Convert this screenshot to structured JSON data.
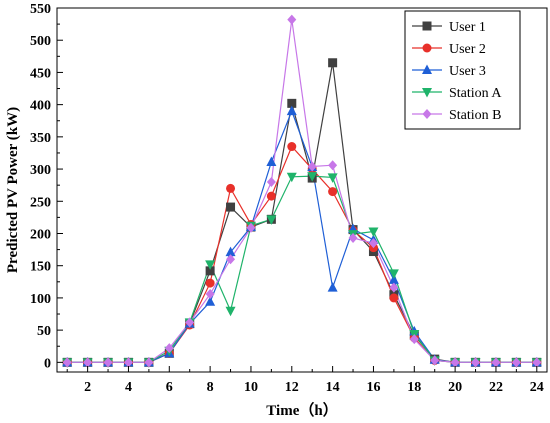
{
  "chart_data": {
    "type": "line",
    "xlabel": "Time（h）",
    "ylabel": "Predicted PV Power (kW)",
    "xlim": [
      0.5,
      24.5
    ],
    "ylim": [
      -15,
      550
    ],
    "xticks": [
      2,
      4,
      6,
      8,
      10,
      12,
      14,
      16,
      18,
      20,
      22,
      24
    ],
    "yticks": [
      0,
      50,
      100,
      150,
      200,
      250,
      300,
      350,
      400,
      450,
      500,
      550
    ],
    "grid": false,
    "legend_position": "top-right",
    "x": [
      1,
      2,
      3,
      4,
      5,
      6,
      7,
      8,
      9,
      10,
      11,
      12,
      13,
      14,
      15,
      16,
      17,
      18,
      19,
      20,
      21,
      22,
      23,
      24
    ],
    "series": [
      {
        "name": "User 1",
        "color": "#404040",
        "marker": "square",
        "values": [
          0,
          0,
          0,
          0,
          0,
          14,
          60,
          142,
          241,
          210,
          222,
          402,
          286,
          465,
          206,
          172,
          105,
          42,
          5,
          0,
          0,
          0,
          0,
          0
        ]
      },
      {
        "name": "User 2",
        "color": "#e8302a",
        "marker": "circle",
        "values": [
          0,
          0,
          0,
          0,
          0,
          14,
          58,
          123,
          270,
          214,
          258,
          335,
          300,
          265,
          205,
          178,
          100,
          38,
          3,
          0,
          0,
          0,
          0,
          0
        ]
      },
      {
        "name": "User 3",
        "color": "#1f5fd6",
        "marker": "triangle-up",
        "values": [
          0,
          0,
          0,
          0,
          0,
          14,
          60,
          94,
          171,
          210,
          311,
          390,
          303,
          116,
          207,
          190,
          128,
          48,
          4,
          0,
          0,
          0,
          0,
          0
        ]
      },
      {
        "name": "Station A",
        "color": "#1fb36a",
        "marker": "triangle-down",
        "values": [
          0,
          0,
          0,
          0,
          0,
          18,
          62,
          152,
          80,
          212,
          222,
          288,
          289,
          287,
          199,
          203,
          138,
          44,
          3,
          0,
          0,
          0,
          0,
          0
        ]
      },
      {
        "name": "Station B",
        "color": "#c777e8",
        "marker": "diamond",
        "values": [
          0,
          0,
          0,
          0,
          0,
          22,
          62,
          106,
          160,
          209,
          280,
          532,
          304,
          306,
          193,
          185,
          116,
          36,
          3,
          0,
          0,
          0,
          0,
          0
        ]
      }
    ]
  }
}
